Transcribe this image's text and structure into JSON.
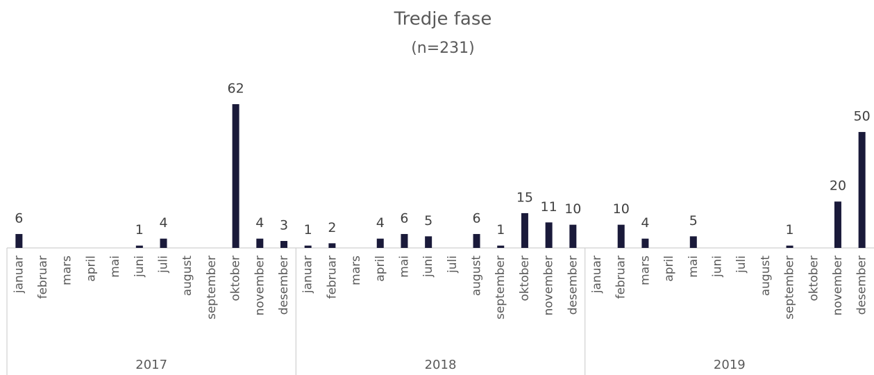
{
  "chart_data": {
    "type": "bar",
    "title": "Tredje fase",
    "subtitle": "(n=231)",
    "color": "#1a1a3a",
    "years": [
      "2017",
      "2018",
      "2019"
    ],
    "categories": [
      "januar",
      "februar",
      "mars",
      "april",
      "mai",
      "juni",
      "juli",
      "august",
      "september",
      "oktober",
      "november",
      "desember",
      "januar",
      "februar",
      "mars",
      "april",
      "mai",
      "juni",
      "juli",
      "august",
      "september",
      "oktober",
      "november",
      "desember",
      "januar",
      "februar",
      "mars",
      "april",
      "mai",
      "juni",
      "juli",
      "august",
      "september",
      "oktober",
      "november",
      "desember"
    ],
    "values": [
      6,
      null,
      null,
      null,
      null,
      1,
      4,
      null,
      null,
      62,
      4,
      3,
      1,
      2,
      null,
      4,
      6,
      5,
      null,
      6,
      1,
      15,
      11,
      10,
      null,
      10,
      4,
      null,
      5,
      null,
      null,
      null,
      1,
      null,
      20,
      50
    ]
  }
}
